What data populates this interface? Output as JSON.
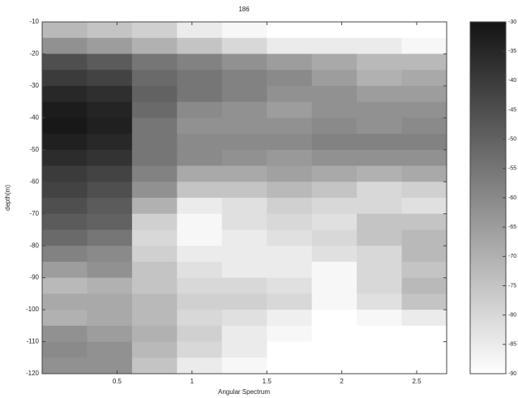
{
  "chart_data": {
    "type": "heatmap",
    "title": "186",
    "xlabel": "Angular Spectrum",
    "ylabel": "depth(m)",
    "x": [
      0.15,
      0.45,
      0.75,
      1.05,
      1.35,
      1.65,
      1.95,
      2.25,
      2.55
    ],
    "y": [
      -12.5,
      -17.5,
      -22.5,
      -27.5,
      -32.5,
      -37.5,
      -42.5,
      -47.5,
      -52.5,
      -57.5,
      -62.5,
      -67.5,
      -72.5,
      -77.5,
      -82.5,
      -87.5,
      -92.5,
      -97.5,
      -102.5,
      -107.5,
      -112.5,
      -117.5
    ],
    "values": [
      [
        -72,
        -75,
        -78,
        -85,
        -88,
        -90,
        -90,
        -90,
        -90
      ],
      [
        -62,
        -65,
        -70,
        -75,
        -80,
        -85,
        -85,
        -85,
        -88
      ],
      [
        -45,
        -48,
        -55,
        -58,
        -62,
        -65,
        -68,
        -72,
        -72
      ],
      [
        -40,
        -42,
        -52,
        -55,
        -58,
        -60,
        -65,
        -70,
        -68
      ],
      [
        -35,
        -37,
        -50,
        -55,
        -58,
        -62,
        -62,
        -65,
        -65
      ],
      [
        -32,
        -34,
        -52,
        -60,
        -62,
        -65,
        -62,
        -62,
        -62
      ],
      [
        -31,
        -33,
        -55,
        -62,
        -62,
        -62,
        -60,
        -62,
        -60
      ],
      [
        -33,
        -35,
        -55,
        -60,
        -60,
        -60,
        -58,
        -58,
        -58
      ],
      [
        -36,
        -38,
        -55,
        -60,
        -62,
        -64,
        -62,
        -62,
        -62
      ],
      [
        -40,
        -42,
        -58,
        -68,
        -68,
        -66,
        -68,
        -70,
        -68
      ],
      [
        -42,
        -45,
        -62,
        -75,
        -75,
        -72,
        -75,
        -80,
        -78
      ],
      [
        -45,
        -48,
        -70,
        -85,
        -82,
        -78,
        -80,
        -80,
        -82
      ],
      [
        -48,
        -50,
        -78,
        -88,
        -82,
        -80,
        -82,
        -75,
        -75
      ],
      [
        -52,
        -55,
        -80,
        -88,
        -85,
        -82,
        -80,
        -75,
        -72
      ],
      [
        -58,
        -60,
        -78,
        -85,
        -85,
        -85,
        -82,
        -80,
        -72
      ],
      [
        -65,
        -62,
        -75,
        -82,
        -85,
        -85,
        -88,
        -80,
        -75
      ],
      [
        -72,
        -70,
        -75,
        -80,
        -80,
        -82,
        -88,
        -80,
        -72
      ],
      [
        -68,
        -68,
        -72,
        -78,
        -78,
        -80,
        -88,
        -82,
        -75
      ],
      [
        -70,
        -68,
        -72,
        -80,
        -82,
        -86,
        -90,
        -88,
        -85
      ],
      [
        -62,
        -65,
        -70,
        -78,
        -85,
        -88,
        -90,
        -90,
        -90
      ],
      [
        -60,
        -62,
        -72,
        -80,
        -85,
        -90,
        -90,
        -90,
        -90
      ],
      [
        -62,
        -62,
        -75,
        -85,
        -88,
        -90,
        -90,
        -90,
        -90
      ]
    ],
    "xlim": [
      0,
      2.7
    ],
    "ylim": [
      -120,
      -10
    ],
    "xticks": [
      0.5,
      1,
      1.5,
      2,
      2.5
    ],
    "yticks": [
      -10,
      -20,
      -30,
      -40,
      -50,
      -60,
      -70,
      -80,
      -90,
      -100,
      -110,
      -120
    ],
    "clim": [
      -90,
      -30
    ],
    "cticks": [
      -30,
      -35,
      -40,
      -45,
      -50,
      -55,
      -60,
      -65,
      -70,
      -75,
      -80,
      -85,
      -90
    ],
    "colormap": "gray"
  }
}
